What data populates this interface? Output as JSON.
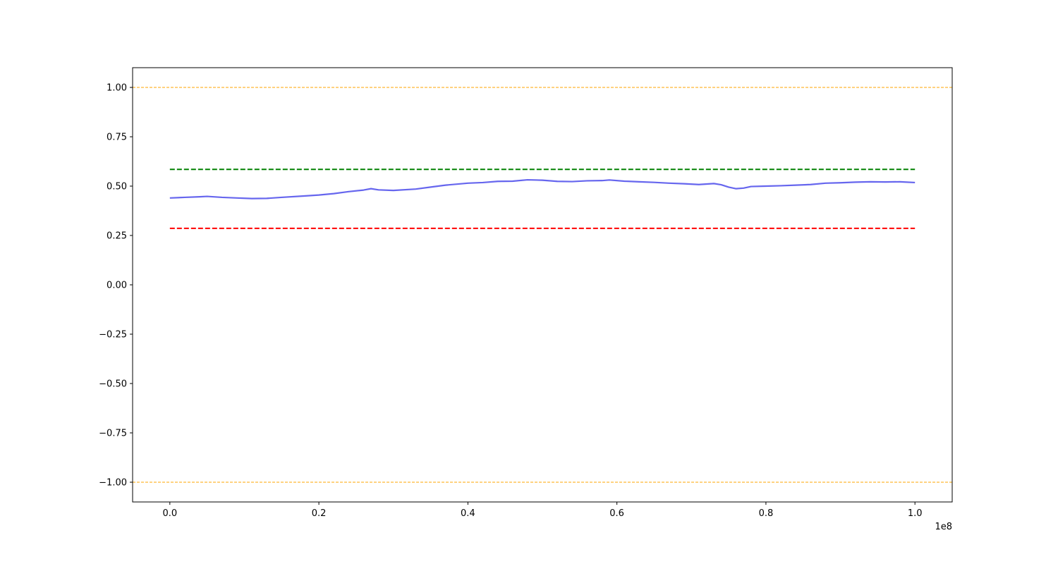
{
  "chart_data": {
    "type": "line",
    "title": "",
    "xlabel": "",
    "ylabel": "",
    "xlim": [
      -5000000,
      105000000
    ],
    "ylim": [
      -1.1,
      1.1
    ],
    "grid": false,
    "x_offset_label": "1e8",
    "x_ticks": [
      0,
      20000000,
      40000000,
      60000000,
      80000000,
      100000000
    ],
    "x_tick_labels": [
      "0.0",
      "0.2",
      "0.4",
      "0.6",
      "0.8",
      "1.0"
    ],
    "y_ticks": [
      1.0,
      0.75,
      0.5,
      0.25,
      0.0,
      -0.25,
      -0.5,
      -0.75,
      -1.0
    ],
    "y_tick_labels": [
      "1.00",
      "0.75",
      "0.50",
      "0.25",
      "0.00",
      "−0.25",
      "−0.50",
      "−0.75",
      "−1.00"
    ],
    "series": [
      {
        "style": "solid",
        "color": "#6666ee",
        "x": [
          0,
          2000000,
          4000000,
          5000000,
          7000000,
          9000000,
          11000000,
          13000000,
          15000000,
          18000000,
          20000000,
          22000000,
          24000000,
          26000000,
          27000000,
          28000000,
          30000000,
          33000000,
          35000000,
          37000000,
          40000000,
          42000000,
          44000000,
          46000000,
          48000000,
          50000000,
          52000000,
          54000000,
          56000000,
          58000000,
          59000000,
          61000000,
          63000000,
          65000000,
          67000000,
          69000000,
          71000000,
          73000000,
          74000000,
          75000000,
          76000000,
          77000000,
          78000000,
          80000000,
          82000000,
          84000000,
          86000000,
          88000000,
          90000000,
          92000000,
          94000000,
          96000000,
          98000000,
          100000000
        ],
        "values": [
          0.44,
          0.443,
          0.446,
          0.448,
          0.443,
          0.44,
          0.437,
          0.438,
          0.443,
          0.45,
          0.455,
          0.462,
          0.472,
          0.48,
          0.487,
          0.481,
          0.478,
          0.485,
          0.495,
          0.505,
          0.515,
          0.518,
          0.524,
          0.525,
          0.532,
          0.53,
          0.524,
          0.523,
          0.527,
          0.528,
          0.531,
          0.525,
          0.522,
          0.519,
          0.515,
          0.512,
          0.508,
          0.513,
          0.507,
          0.495,
          0.487,
          0.49,
          0.498,
          0.5,
          0.502,
          0.505,
          0.508,
          0.515,
          0.517,
          0.52,
          0.522,
          0.521,
          0.522,
          0.518
        ]
      },
      {
        "style": "dashed",
        "color": "#008000",
        "x": [
          0,
          100000000
        ],
        "values": [
          0.585,
          0.585
        ]
      },
      {
        "style": "dashed",
        "color": "#ff0000",
        "x": [
          0,
          100000000
        ],
        "values": [
          0.286,
          0.286
        ]
      },
      {
        "style": "dashed-thin",
        "color": "#ffa500",
        "x": [
          -5000000,
          105000000
        ],
        "values": [
          1.0,
          1.0
        ]
      },
      {
        "style": "dashed-thin",
        "color": "#ffa500",
        "x": [
          -5000000,
          105000000
        ],
        "values": [
          -1.0,
          -1.0
        ]
      }
    ]
  }
}
